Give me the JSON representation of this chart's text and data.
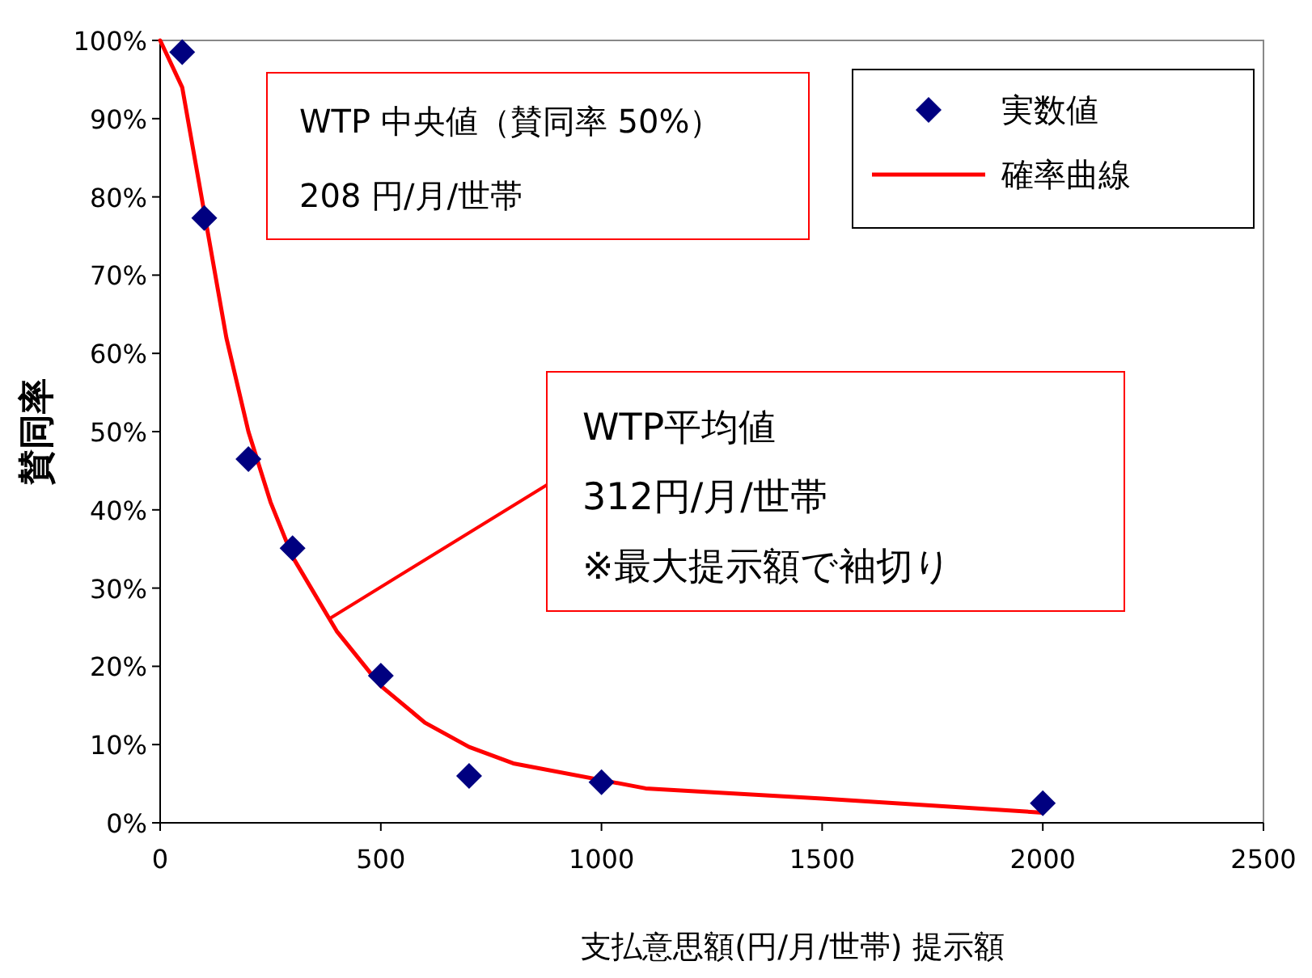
{
  "chart_data": {
    "type": "scatter",
    "xlabel": "支払意思額(円/月/世帯)  提示額",
    "ylabel": "賛同率",
    "xlim": [
      0,
      2500
    ],
    "xticks": [
      0,
      500,
      1000,
      1500,
      2000,
      2500
    ],
    "ylim": [
      0,
      100
    ],
    "yticks": [
      {
        "value": 0,
        "label": "0%"
      },
      {
        "value": 10,
        "label": "10%"
      },
      {
        "value": 20,
        "label": "20%"
      },
      {
        "value": 30,
        "label": "30%"
      },
      {
        "value": 40,
        "label": "40%"
      },
      {
        "value": 50,
        "label": "50%"
      },
      {
        "value": 60,
        "label": "60%"
      },
      {
        "value": 70,
        "label": "70%"
      },
      {
        "value": 80,
        "label": "80%"
      },
      {
        "value": 90,
        "label": "90%"
      },
      {
        "value": 100,
        "label": "100%"
      }
    ],
    "grid": false,
    "legend": "top right",
    "series": [
      {
        "name": "実数値",
        "type": "scatter",
        "marker": "diamond",
        "color": "#000080",
        "x": [
          50,
          100,
          200,
          300,
          500,
          700,
          1000,
          2000
        ],
        "values": [
          98.5,
          77.3,
          46.5,
          35.1,
          18.8,
          6.0,
          5.2,
          2.5
        ]
      },
      {
        "name": "確率曲線",
        "type": "line",
        "marker": "none",
        "color": "#ff0000",
        "x": [
          0,
          50,
          100,
          150,
          200,
          250,
          300,
          400,
          500,
          600,
          700,
          800,
          1100,
          1500,
          2000
        ],
        "values": [
          100,
          94,
          78,
          62,
          50,
          41,
          34,
          24.5,
          17.5,
          12.8,
          9.7,
          7.6,
          4.4,
          3.1,
          1.3
        ]
      }
    ],
    "annotations": [
      "WTP 中央値（賛同率 50%）",
      "208 円/月/世帯",
      {
        "text": "WTP平均値\n312円/月/世帯\n※最大提示額で袖切り",
        "x": 381,
        "y": 26
      }
    ]
  }
}
